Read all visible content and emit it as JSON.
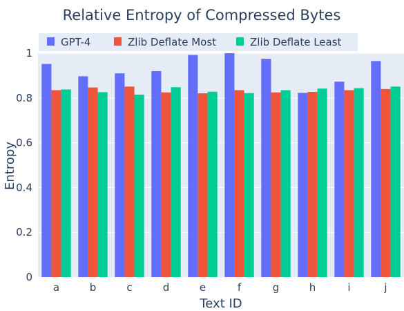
{
  "chart_data": {
    "type": "bar",
    "title": "Relative Entropy of Compressed Bytes",
    "xlabel": "Text ID",
    "ylabel": "Entropy",
    "ylim": [
      0,
      1
    ],
    "y_ticks": [
      "0",
      "0.2",
      "0.4",
      "0.6",
      "0.8",
      "1"
    ],
    "grid": true,
    "legend_position": "top",
    "categories": [
      "a",
      "b",
      "c",
      "d",
      "e",
      "f",
      "g",
      "h",
      "i",
      "j"
    ],
    "series": [
      {
        "name": "GPT-4",
        "color": "#636efa",
        "values": [
          0.952,
          0.897,
          0.91,
          0.92,
          0.992,
          1.0,
          0.975,
          0.823,
          0.873,
          0.965
        ]
      },
      {
        "name": "Zlib Deflate Most",
        "color": "#ef553b",
        "values": [
          0.835,
          0.847,
          0.851,
          0.825,
          0.821,
          0.835,
          0.825,
          0.827,
          0.835,
          0.84
        ]
      },
      {
        "name": "Zlib Deflate Least",
        "color": "#00cc96",
        "values": [
          0.838,
          0.826,
          0.815,
          0.848,
          0.828,
          0.822,
          0.835,
          0.842,
          0.844,
          0.851
        ]
      }
    ]
  }
}
